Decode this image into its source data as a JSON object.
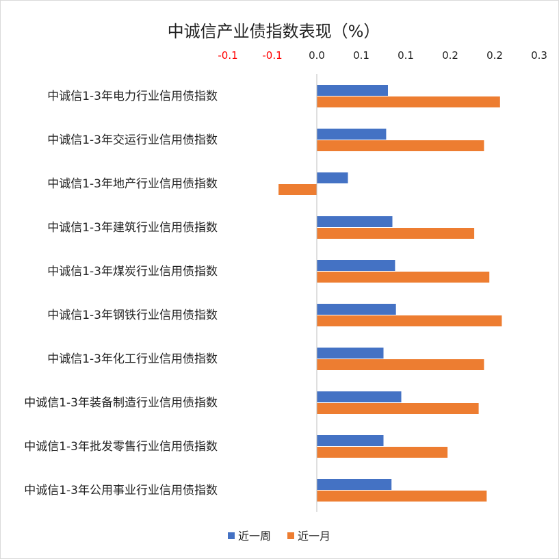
{
  "chart_data": {
    "type": "bar",
    "orientation": "horizontal",
    "title": "中诚信产业债指数表现（%）",
    "xlabel": "",
    "ylabel": "",
    "xlim": [
      -0.1,
      0.3
    ],
    "x_ticks": [
      -0.1,
      -0.05,
      0,
      0.05,
      0.1,
      0.15,
      0.2,
      0.25
    ],
    "x_tick_labels": [
      "-0.1",
      "-0.1",
      "0.0",
      "0.1",
      "0.1",
      "0.2",
      "0.2",
      "0.3"
    ],
    "negative_tick_color": "#ff0000",
    "grid": false,
    "legend_position": "bottom",
    "categories": [
      "中诚信1-3年电力行业信用债指数",
      "中诚信1-3年交运行业信用债指数",
      "中诚信1-3年地产行业信用债指数",
      "中诚信1-3年建筑行业信用债指数",
      "中诚信1-3年煤炭行业信用债指数",
      "中诚信1-3年钢铁行业信用债指数",
      "中诚信1-3年化工行业信用债指数",
      "中诚信1-3年装备制造行业信用债指数",
      "中诚信1-3年批发零售行业信用债指数",
      "中诚信1-3年公用事业行业信用债指数"
    ],
    "series": [
      {
        "name": "近一周",
        "color": "#4472c4",
        "values": [
          0.08,
          0.078,
          0.035,
          0.085,
          0.088,
          0.089,
          0.075,
          0.095,
          0.075,
          0.084
        ]
      },
      {
        "name": "近一月",
        "color": "#ed7d31",
        "values": [
          0.206,
          0.188,
          -0.043,
          0.177,
          0.194,
          0.208,
          0.188,
          0.182,
          0.147,
          0.191
        ]
      }
    ]
  }
}
